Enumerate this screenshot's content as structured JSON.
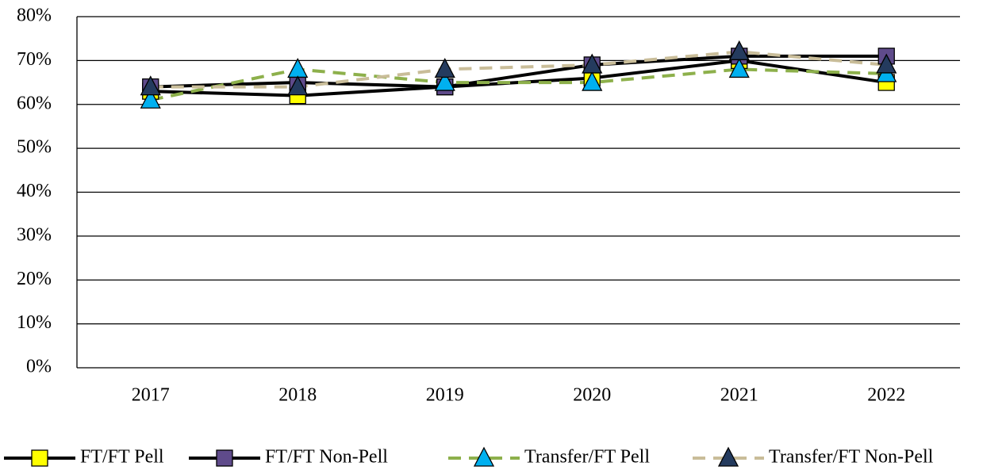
{
  "chart_data": {
    "type": "line",
    "categories": [
      "2017",
      "2018",
      "2019",
      "2020",
      "2021",
      "2022"
    ],
    "ylim": [
      0,
      80
    ],
    "yticks": [
      {
        "value": 0,
        "label": "0%"
      },
      {
        "value": 10,
        "label": "10%"
      },
      {
        "value": 20,
        "label": "20%"
      },
      {
        "value": 30,
        "label": "30%"
      },
      {
        "value": 40,
        "label": "40%"
      },
      {
        "value": 50,
        "label": "50%"
      },
      {
        "value": 60,
        "label": "60%"
      },
      {
        "value": 70,
        "label": "70%"
      },
      {
        "value": 80,
        "label": "80%"
      }
    ],
    "grid": true,
    "legend": "bottom",
    "series": [
      {
        "name": "FT/FT Pell",
        "color": "#ffff00",
        "line_color": "#000000",
        "dashed": false,
        "marker": "square",
        "values": [
          63,
          62,
          64,
          66,
          70,
          65
        ]
      },
      {
        "name": "FT/FT Non-Pell",
        "color": "#5f4b8b",
        "line_color": "#000000",
        "dashed": false,
        "marker": "square",
        "values": [
          64,
          65,
          64,
          69,
          71,
          71
        ]
      },
      {
        "name": "Transfer/FT Pell",
        "color": "#00b0f0",
        "line_color": "#8db04b",
        "dashed": true,
        "marker": "triangle",
        "values": [
          61,
          68,
          65,
          65,
          68,
          67
        ]
      },
      {
        "name": "Transfer/FT Non-Pell",
        "color": "#243b5e",
        "line_color": "#c9bd99",
        "dashed": true,
        "marker": "triangle",
        "values": [
          64,
          64,
          68,
          69,
          72,
          69
        ]
      }
    ]
  }
}
